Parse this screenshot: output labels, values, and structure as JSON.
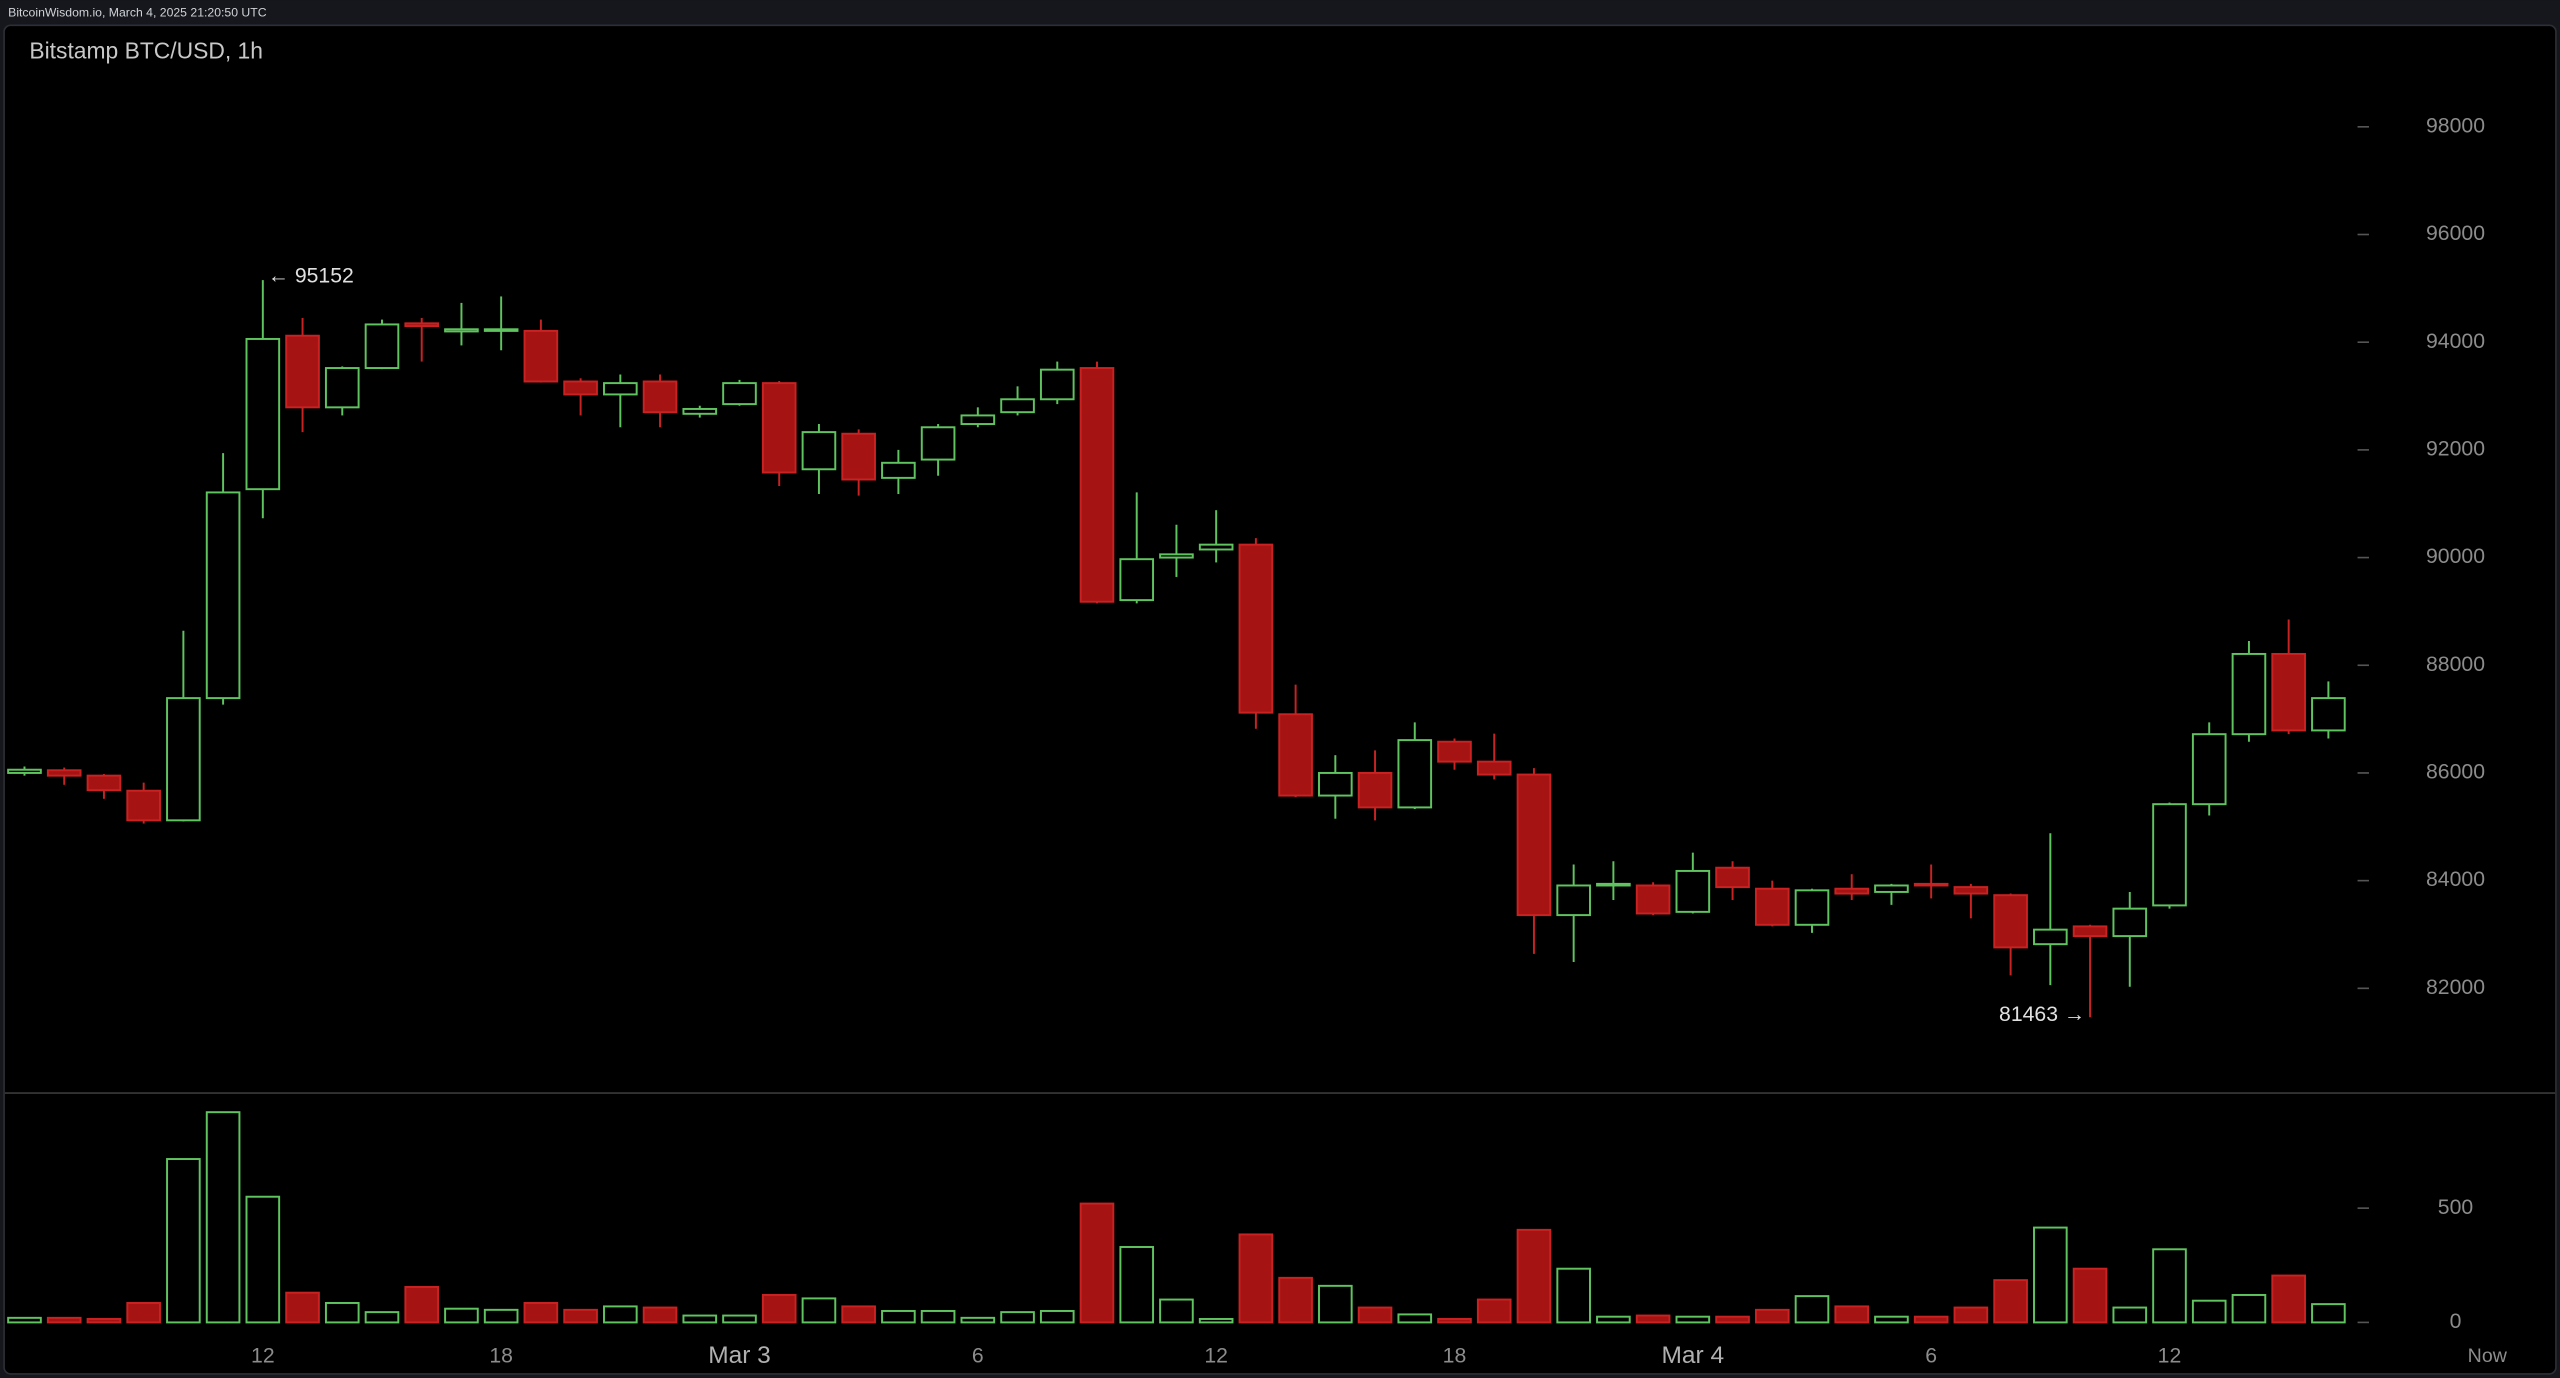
{
  "header": {
    "text": "BitcoinWisdom.io, March 4, 2025 21:20:50 UTC"
  },
  "chart_data": {
    "type": "candlestick",
    "title": "Bitstamp BTC/USD, 1h",
    "categories": [
      null,
      null,
      null,
      null,
      null,
      null,
      "12",
      null,
      null,
      null,
      null,
      null,
      "18",
      null,
      null,
      null,
      null,
      null,
      "Mar 3",
      null,
      null,
      null,
      null,
      null,
      "6",
      null,
      null,
      null,
      null,
      null,
      "12",
      null,
      null,
      null,
      null,
      null,
      "18",
      null,
      null,
      null,
      null,
      null,
      "Mar 4",
      null,
      null,
      null,
      null,
      null,
      "6",
      null,
      null,
      null,
      null,
      null,
      "12",
      null,
      null,
      null,
      null
    ],
    "open": [
      86000,
      86050,
      85950,
      85670,
      85120,
      87390,
      91270,
      94120,
      92790,
      93520,
      94350,
      94200,
      94220,
      94210,
      93270,
      93030,
      93270,
      92670,
      92850,
      93240,
      91640,
      92300,
      91480,
      91820,
      92480,
      92700,
      92940,
      93520,
      89210,
      90000,
      90150,
      90240,
      87090,
      85580,
      86000,
      85360,
      86580,
      86210,
      85970,
      83360,
      83920,
      83910,
      83420,
      84240,
      83850,
      83180,
      83850,
      83790,
      83940,
      83880,
      83730,
      82820,
      83150,
      82970,
      83540,
      85420,
      86720,
      88210,
      86790
    ],
    "high": [
      86120,
      86100,
      85980,
      85820,
      88640,
      91940,
      95152,
      94450,
      93550,
      94420,
      94450,
      94730,
      94850,
      94420,
      93330,
      93400,
      93400,
      92820,
      93300,
      93280,
      92480,
      92380,
      92000,
      92480,
      92790,
      93180,
      93640,
      93640,
      91210,
      90610,
      90880,
      90360,
      87640,
      86330,
      86420,
      86940,
      86640,
      86730,
      86090,
      84300,
      84360,
      83970,
      84520,
      84360,
      84000,
      83850,
      84120,
      83940,
      84300,
      83940,
      83760,
      84880,
      83180,
      83790,
      85450,
      86940,
      88450,
      88850,
      87700
    ],
    "low": [
      85950,
      85780,
      85520,
      85060,
      85100,
      87270,
      90730,
      92330,
      92640,
      93500,
      93640,
      93940,
      93850,
      93250,
      92640,
      92420,
      92420,
      92600,
      92820,
      91330,
      91180,
      91150,
      91180,
      91520,
      92420,
      92640,
      92850,
      89150,
      89150,
      89640,
      89910,
      86820,
      85550,
      85150,
      85120,
      85330,
      86060,
      85880,
      82640,
      82490,
      83640,
      83360,
      83390,
      83640,
      83150,
      83030,
      83640,
      83550,
      83670,
      83300,
      82240,
      82060,
      81463,
      82030,
      83480,
      85210,
      86580,
      86720,
      86640
    ],
    "close": [
      86060,
      85950,
      85680,
      85120,
      87390,
      91210,
      94060,
      92790,
      93520,
      94330,
      94300,
      94240,
      94240,
      93270,
      93030,
      93240,
      92700,
      92760,
      93240,
      91580,
      92330,
      91450,
      91760,
      92420,
      92640,
      92940,
      93490,
      89180,
      89970,
      90060,
      90240,
      87120,
      85580,
      86000,
      85360,
      86610,
      86210,
      85970,
      83360,
      83910,
      83940,
      83390,
      84180,
      83880,
      83180,
      83820,
      83760,
      83910,
      83910,
      83760,
      82760,
      83090,
      82970,
      83480,
      85420,
      86720,
      88210,
      86790,
      87390
    ],
    "volume": [
      20,
      20,
      15,
      85,
      715,
      920,
      550,
      130,
      85,
      45,
      155,
      60,
      55,
      85,
      55,
      70,
      65,
      30,
      30,
      120,
      105,
      70,
      50,
      50,
      20,
      45,
      50,
      520,
      330,
      100,
      15,
      385,
      195,
      160,
      65,
      35,
      15,
      100,
      405,
      235,
      25,
      30,
      25,
      25,
      55,
      115,
      70,
      25,
      25,
      65,
      185,
      415,
      235,
      65,
      320,
      95,
      120,
      205,
      80
    ],
    "up_color": "#5fc45f",
    "down_color": "#a51313",
    "ylim": [
      80100,
      99900
    ],
    "yticks": [
      82000,
      84000,
      86000,
      88000,
      90000,
      92000,
      94000,
      96000,
      98000
    ],
    "volume_ylim": [
      -36,
      1000
    ],
    "volume_yticks": [
      0,
      500
    ],
    "annotations": [
      {
        "value": 95152,
        "label": "← 95152"
      },
      {
        "value": 81463,
        "label": "81463 →"
      }
    ],
    "now_label": "Now"
  }
}
